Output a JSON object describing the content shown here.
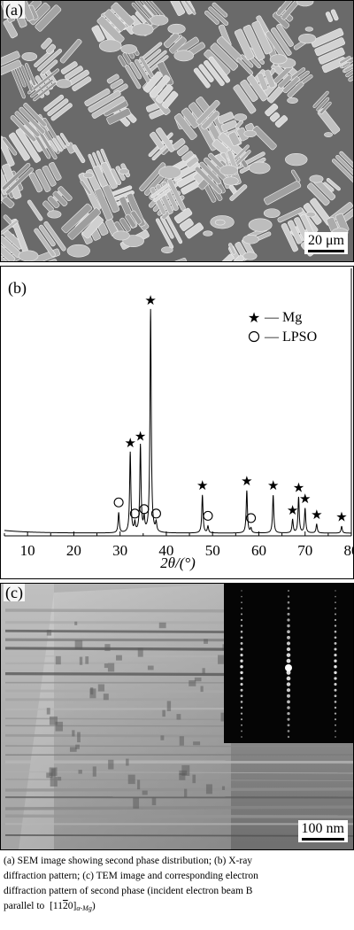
{
  "panel_a": {
    "label": "(a)",
    "scale": "20 μm"
  },
  "panel_b": {
    "label": "(b)",
    "legend": {
      "star_label": "— Mg",
      "circle_label": "— LPSO"
    }
  },
  "panel_c": {
    "label": "(c)",
    "scale": "100 nm"
  },
  "caption": {
    "line1": "(a) SEM image showing second phase distribution; (b) X-ray",
    "line2": "diffraction pattern; (c) TEM image and corresponding electron",
    "line3": "diffraction pattern of second phase (incident electron beam B",
    "line4_prefix": "parallel to",
    "line4_index": "[11",
    "line4_bar": "2",
    "line4_index_end": "0]",
    "line4_sub": "α-Mg",
    "line4_suffix": ")"
  },
  "chart_data": {
    "type": "line",
    "xlabel": "2θ/(°)",
    "xlim": [
      5,
      80
    ],
    "x_ticks": [
      "10",
      "20",
      "30",
      "40",
      "50",
      "60",
      "70",
      "80"
    ],
    "series": [
      {
        "name": "Mg",
        "marker": "star",
        "peaks": [
          {
            "x": 32.2,
            "y": 0.36
          },
          {
            "x": 34.4,
            "y": 0.39
          },
          {
            "x": 36.6,
            "y": 1.0
          },
          {
            "x": 47.8,
            "y": 0.17
          },
          {
            "x": 57.4,
            "y": 0.19
          },
          {
            "x": 63.1,
            "y": 0.17
          },
          {
            "x": 67.3,
            "y": 0.06
          },
          {
            "x": 68.6,
            "y": 0.16
          },
          {
            "x": 70.0,
            "y": 0.11
          },
          {
            "x": 72.5,
            "y": 0.04
          },
          {
            "x": 77.9,
            "y": 0.03
          }
        ]
      },
      {
        "name": "LPSO",
        "marker": "circle",
        "peaks": [
          {
            "x": 29.7,
            "y": 0.09
          },
          {
            "x": 33.2,
            "y": 0.04
          },
          {
            "x": 35.2,
            "y": 0.06
          },
          {
            "x": 37.8,
            "y": 0.04
          },
          {
            "x": 49.0,
            "y": 0.03
          },
          {
            "x": 58.3,
            "y": 0.02
          }
        ]
      }
    ],
    "legend_position": "top-right"
  }
}
